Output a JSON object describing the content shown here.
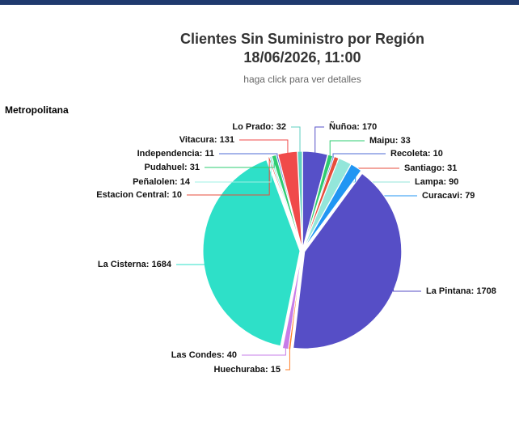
{
  "chart_data": {
    "type": "pie",
    "title": "Clientes Sin Suministro por Región",
    "timestamp": "18/06/2026, 11:00",
    "subtitle": "haga click para ver detalles",
    "region": "Metropolitana",
    "values": [
      170,
      33,
      10,
      31,
      90,
      79,
      1708,
      15,
      40,
      1684,
      10,
      14,
      31,
      11,
      131,
      32
    ],
    "value_labels": [
      "Ñuñoa: 170",
      "Maipu: 33",
      "Recoleta: 10",
      "Santiago: 31",
      "Lampa: 90",
      "Curacavi: 79",
      "La Pintana: 1708",
      "Huechuraba: 15",
      "Las Condes: 40",
      "La Cisterna: 1684",
      "Estacion Central: 10",
      "Peñalolen: 14",
      "Pudahuel: 31",
      "Independencia: 11",
      "Vitacura: 131",
      "Lo Prado: 32"
    ],
    "colors": [
      "#5650c8",
      "#2ecc71",
      "#4e6bd6",
      "#e74c3c",
      "#93e6da",
      "#2196f3",
      "#564ec6",
      "#ff7f2a",
      "#c77ce8",
      "#2ee0c8",
      "#e74c3c",
      "#9ff0e4",
      "#2ecc71",
      "#4e6bd6",
      "#f04a4a",
      "#5fd0c0"
    ]
  }
}
